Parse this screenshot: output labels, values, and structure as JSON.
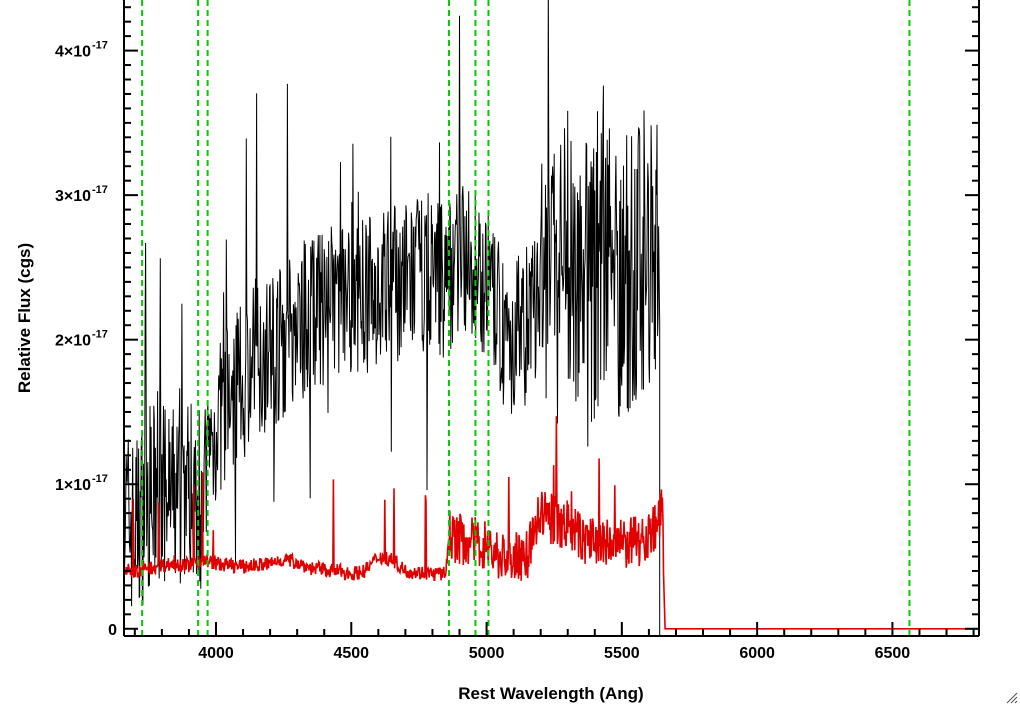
{
  "chart_data": {
    "type": "line",
    "title": "",
    "xlabel": "Rest Wavelength (Ang)",
    "ylabel": "Relative Flux (cgs)",
    "xlim": [
      3660,
      6820
    ],
    "ylim": [
      -0.05,
      4.35
    ],
    "y_scale_note": "values in units of 10^-17",
    "x_ticks": [
      4000,
      4500,
      5000,
      5500,
      6000,
      6500
    ],
    "x_tick_labels": [
      "4000",
      "4500",
      "5000",
      "5500",
      "6000",
      "6500"
    ],
    "y_ticks": [
      0,
      1,
      2,
      3,
      4
    ],
    "y_tick_labels": [
      {
        "mantissa": "0",
        "exponent": ""
      },
      {
        "mantissa": "1×10",
        "exponent": "-17"
      },
      {
        "mantissa": "2×10",
        "exponent": "-17"
      },
      {
        "mantissa": "3×10",
        "exponent": "-17"
      },
      {
        "mantissa": "4×10",
        "exponent": "-17"
      }
    ],
    "reference_lines": [
      3727,
      3934,
      3969,
      4861,
      4959,
      5007,
      6563
    ],
    "grid": false,
    "legend": "none",
    "colors": {
      "spectrum": "#000000",
      "error": "#e00000",
      "reference": "#00cc00"
    },
    "series": [
      {
        "x": [
          3660,
          3700,
          3750,
          3800,
          3850,
          3900,
          3950,
          4000,
          4050,
          4100,
          4150,
          4200,
          4250,
          4300,
          4350,
          4400,
          4450,
          4500,
          4550,
          4600,
          4650,
          4700,
          4750,
          4800,
          4850,
          4900,
          4950,
          5000,
          5050,
          5100,
          5150,
          5200,
          5250,
          5300,
          5350,
          5400,
          5450,
          5500,
          5550,
          5600,
          5640
        ],
        "y": [
          0.8,
          0.7,
          0.9,
          0.9,
          0.9,
          1.0,
          0.9,
          1.4,
          1.6,
          1.7,
          1.9,
          1.9,
          2.0,
          2.1,
          2.2,
          2.2,
          2.3,
          2.3,
          2.3,
          2.35,
          2.4,
          2.4,
          2.45,
          2.5,
          2.4,
          2.6,
          2.5,
          2.4,
          2.1,
          2.0,
          2.1,
          2.3,
          2.5,
          2.6,
          2.5,
          2.4,
          2.6,
          2.4,
          2.5,
          2.7,
          2.6
        ]
      },
      {
        "x": [
          3660,
          3700,
          3750,
          3800,
          3850,
          3900,
          3950,
          4000,
          4050,
          4100,
          4150,
          4200,
          4250,
          4300,
          4350,
          4400,
          4450,
          4500,
          4550,
          4600,
          4650,
          4700,
          4750,
          4800,
          4850,
          4860,
          4900,
          4950,
          5000,
          5050,
          5100,
          5150,
          5200,
          5250,
          5300,
          5350,
          5400,
          5450,
          5500,
          5550,
          5600,
          5650,
          5660,
          6000,
          6500,
          6820
        ],
        "y": [
          0.4,
          0.4,
          0.42,
          0.44,
          0.45,
          0.44,
          0.48,
          0.45,
          0.44,
          0.43,
          0.44,
          0.45,
          0.48,
          0.46,
          0.42,
          0.41,
          0.4,
          0.38,
          0.4,
          0.5,
          0.48,
          0.4,
          0.39,
          0.38,
          0.38,
          0.65,
          0.62,
          0.6,
          0.58,
          0.5,
          0.48,
          0.52,
          0.8,
          0.75,
          0.72,
          0.62,
          0.6,
          0.58,
          0.58,
          0.6,
          0.65,
          0.8,
          0.0,
          0.0,
          0.0,
          0.0
        ]
      }
    ]
  }
}
